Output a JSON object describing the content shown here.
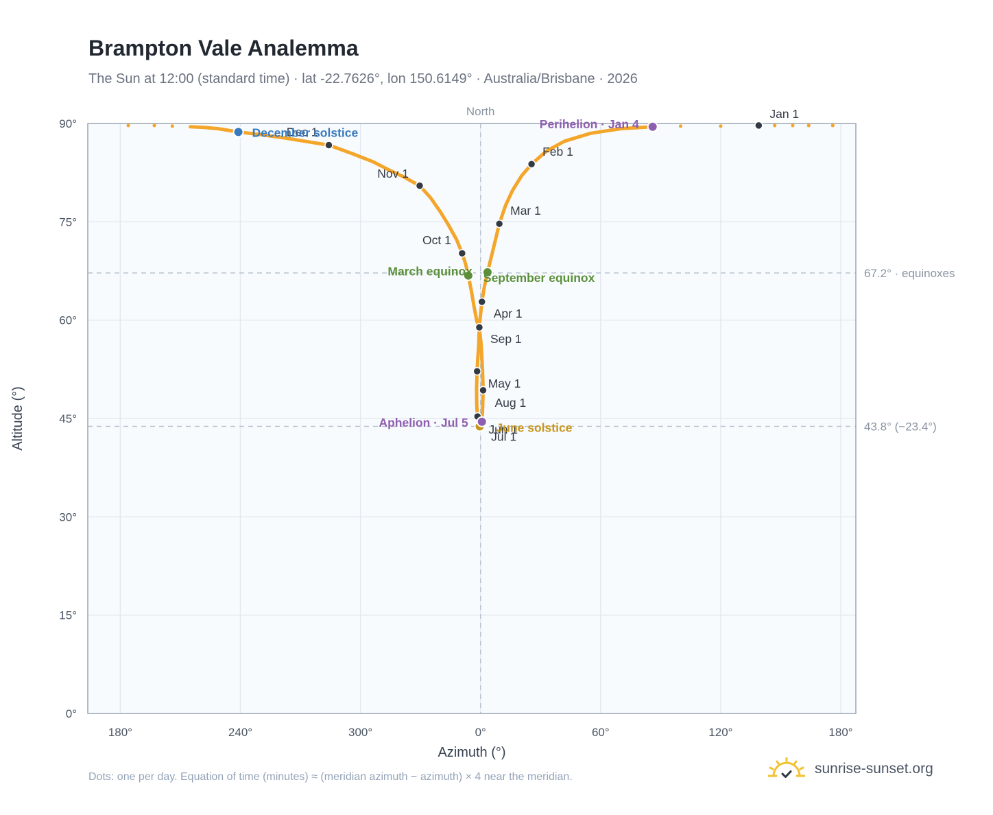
{
  "header": {
    "title": "Brampton Vale Analemma",
    "subtitle": "The Sun at 12:00 (standard time) · lat -22.7626°, lon 150.6149° · Australia/Brisbane · 2026"
  },
  "footer": {
    "note": "Dots: one per day. Equation of time (minutes) ≈ (meridian azimuth − azimuth) × 4 near the meridian.",
    "brand": "sunrise-sunset.org"
  },
  "colors": {
    "curve": "#f4a62a",
    "month_point": "#333a44",
    "equinox": "#5b8f3a",
    "solstice_june": "#c8961e",
    "solstice_december": "#3a7bbf",
    "perihelion": "#8e5fb0",
    "plot_background": "#f8fbfe",
    "grid": "#e3e9f0",
    "reference_line": "#b7c3cf",
    "sun_icon": "#f1c232"
  },
  "chart_data": {
    "type": "scatter",
    "xlabel": "Azimuth (°)",
    "ylabel": "Altitude (°)",
    "x_ticks": [
      "180°",
      "240°",
      "300°",
      "0°",
      "60°",
      "120°",
      "180°"
    ],
    "y_ticks": [
      "0°",
      "15°",
      "30°",
      "45°",
      "60°",
      "75°",
      "90°"
    ],
    "ylim": [
      0,
      90
    ],
    "meridian_label": "North",
    "grid": true,
    "reference_lines": [
      {
        "altitude": 67.2,
        "label": "67.2° · equinoxes"
      },
      {
        "altitude": 43.8,
        "label": "43.8° (−23.4°)"
      }
    ],
    "month_points": [
      {
        "label": "Jan 1",
        "azimuth": 139.0,
        "altitude": 89.7
      },
      {
        "label": "Feb 1",
        "azimuth": 25.5,
        "altitude": 83.8
      },
      {
        "label": "Mar 1",
        "azimuth": 9.4,
        "altitude": 74.7
      },
      {
        "label": "Apr 1",
        "azimuth": 0.7,
        "altitude": 62.8
      },
      {
        "label": "May 1",
        "azimuth": 358.3,
        "altitude": 52.2
      },
      {
        "label": "Jun 1",
        "azimuth": 358.5,
        "altitude": 45.3
      },
      {
        "label": "Jul 1",
        "azimuth": 359.8,
        "altitude": 43.9
      },
      {
        "label": "Aug 1",
        "azimuth": 1.3,
        "altitude": 49.3
      },
      {
        "label": "Sep 1",
        "azimuth": 359.4,
        "altitude": 58.9
      },
      {
        "label": "Oct 1",
        "azimuth": 350.8,
        "altitude": 70.2
      },
      {
        "label": "Nov 1",
        "azimuth": 329.6,
        "altitude": 80.5
      },
      {
        "label": "Dec 1",
        "azimuth": 284.2,
        "altitude": 86.7
      }
    ],
    "events": [
      {
        "label": "March equinox",
        "azimuth": 353.9,
        "altitude": 66.8,
        "color": "#5b8f3a"
      },
      {
        "label": "September equinox",
        "azimuth": 3.5,
        "altitude": 67.3,
        "color": "#5b8f3a"
      },
      {
        "label": "June solstice",
        "azimuth": 359.6,
        "altitude": 43.8,
        "color": "#c8961e"
      },
      {
        "label": "December solstice",
        "azimuth": 239.0,
        "altitude": 88.7,
        "color": "#3a7bbf"
      },
      {
        "label": "Perihelion · Jan 4",
        "azimuth": 86.0,
        "altitude": 89.5,
        "color": "#8e5fb0"
      },
      {
        "label": "Aphelion · Jul 5",
        "azimuth": 0.7,
        "altitude": 44.5,
        "color": "#8e5fb0"
      }
    ],
    "curve_path": [
      [
        184.0,
        89.7
      ],
      [
        197.0,
        89.7
      ],
      [
        206.0,
        89.6
      ],
      [
        215.0,
        89.5
      ],
      [
        222.0,
        89.4
      ],
      [
        229.0,
        89.2
      ],
      [
        239.0,
        88.7
      ],
      [
        250.0,
        88.3
      ],
      [
        262.0,
        87.8
      ],
      [
        272.0,
        87.3
      ],
      [
        284.2,
        86.7
      ],
      [
        296.0,
        85.4
      ],
      [
        306.0,
        84.2
      ],
      [
        315.0,
        82.8
      ],
      [
        322.0,
        81.8
      ],
      [
        329.6,
        80.5
      ],
      [
        335.0,
        78.7
      ],
      [
        340.0,
        76.5
      ],
      [
        344.0,
        74.5
      ],
      [
        348.0,
        72.3
      ],
      [
        350.8,
        70.2
      ],
      [
        352.6,
        68.5
      ],
      [
        353.9,
        66.8
      ],
      [
        355.4,
        64.5
      ],
      [
        356.8,
        62.0
      ],
      [
        358.2,
        59.8
      ],
      [
        359.4,
        58.9
      ],
      [
        359.1,
        56.3
      ],
      [
        358.6,
        54.0
      ],
      [
        358.3,
        52.2
      ],
      [
        358.0,
        49.5
      ],
      [
        358.1,
        47.0
      ],
      [
        358.5,
        45.3
      ],
      [
        359.0,
        44.3
      ],
      [
        359.6,
        43.8
      ],
      [
        359.8,
        43.9
      ],
      [
        0.5,
        44.3
      ],
      [
        0.7,
        44.5
      ],
      [
        1.0,
        46.0
      ],
      [
        1.3,
        49.3
      ],
      [
        1.0,
        52.5
      ],
      [
        0.3,
        56.3
      ],
      [
        359.4,
        58.9
      ],
      [
        359.9,
        60.5
      ],
      [
        0.7,
        62.8
      ],
      [
        2.0,
        65.2
      ],
      [
        3.5,
        67.3
      ],
      [
        5.5,
        69.8
      ],
      [
        7.5,
        72.3
      ],
      [
        9.4,
        74.7
      ],
      [
        12.5,
        77.5
      ],
      [
        16.0,
        79.8
      ],
      [
        20.5,
        82.0
      ],
      [
        25.5,
        83.8
      ],
      [
        33.0,
        85.8
      ],
      [
        42.0,
        87.3
      ],
      [
        55.0,
        88.5
      ],
      [
        70.0,
        89.2
      ],
      [
        86.0,
        89.5
      ],
      [
        100.0,
        89.6
      ],
      [
        120.0,
        89.6
      ],
      [
        139.0,
        89.7
      ],
      [
        147.0,
        89.7
      ],
      [
        156.0,
        89.7
      ],
      [
        164.0,
        89.7
      ],
      [
        176.0,
        89.7
      ]
    ]
  }
}
